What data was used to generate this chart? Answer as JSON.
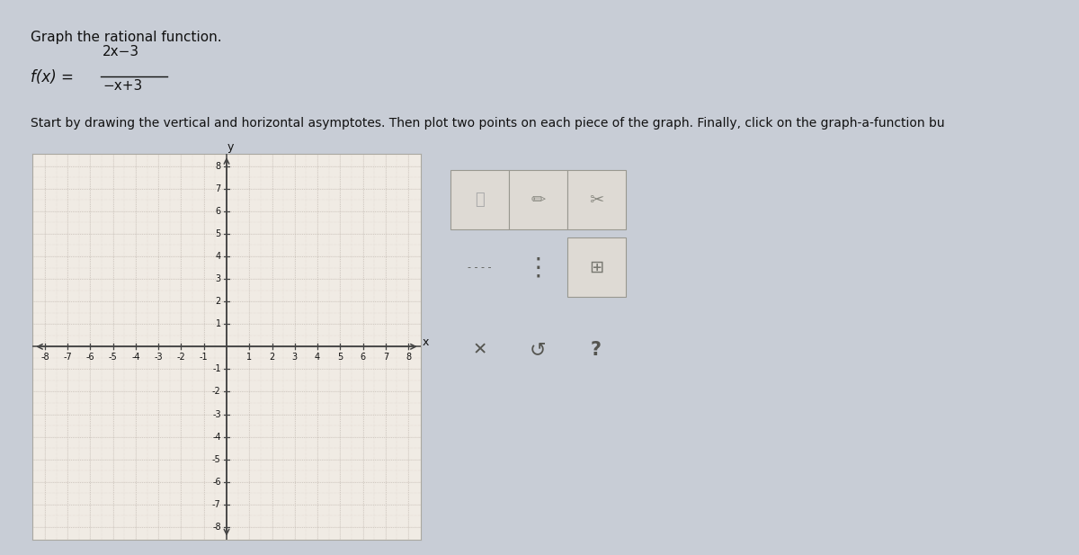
{
  "title_text": "Graph the rational function.",
  "func_label": "f(x) =",
  "func_num": "2x−3",
  "func_den": "−x+3",
  "instruction": "Start by drawing the vertical and horizontal asymptotes. Then plot two points on each piece of the graph. Finally, click on the graph-a-function bu",
  "xmin": -8,
  "xmax": 8,
  "ymin": -8,
  "ymax": 8,
  "bg_outer": "#c8cdd6",
  "bg_graph": "#f0ebe4",
  "bg_toolbar": "#ddd8d2",
  "grid_major_color": "#c0b8b0",
  "grid_minor_color": "#d8d0c8",
  "axis_color": "#444444",
  "tick_color": "#444444",
  "text_color": "#111111",
  "border_color": "#aaa8a0",
  "tick_fontsize": 7,
  "axis_label_fontsize": 9
}
